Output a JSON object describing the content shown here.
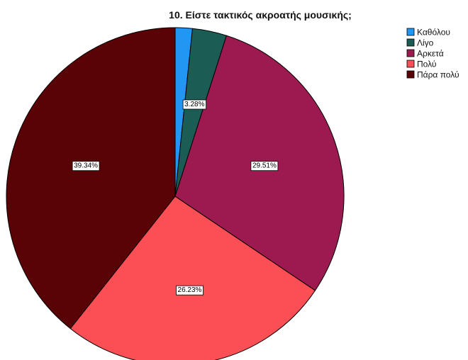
{
  "chart_data": {
    "type": "pie",
    "title": "10. Είστε τακτικός ακροατής μουσικής;",
    "categories": [
      "Καθόλου",
      "Λίγο",
      "Αρκετά",
      "Πολύ",
      "Πάρα πολύ"
    ],
    "values": [
      1.64,
      3.28,
      29.51,
      26.23,
      39.34
    ],
    "unit": "%",
    "data_labels": [
      "",
      "3.28%",
      "29.51%",
      "26.23%",
      "39.34%"
    ],
    "colors": [
      "#2196f3",
      "#1b5c54",
      "#9c1a50",
      "#fb4f55",
      "#5a0306"
    ],
    "legend_position": "top-right",
    "start": "12 o'clock, clockwise"
  }
}
